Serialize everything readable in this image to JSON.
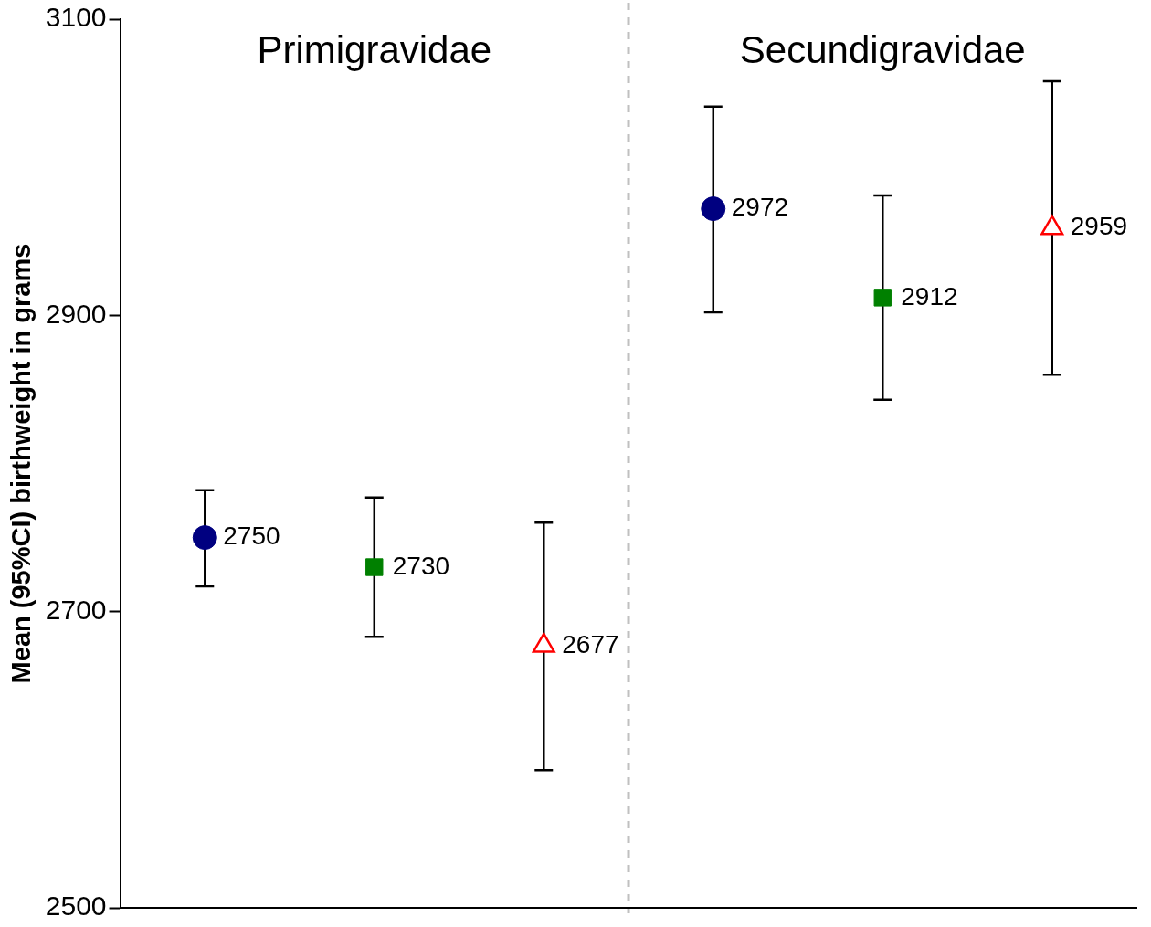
{
  "chart_data": {
    "type": "scatter",
    "ylabel": "Mean (95%CI) birthweight in grams",
    "categories": [
      null,
      null,
      null,
      null,
      null,
      null
    ],
    "series": [
      {
        "color": "#000080",
        "marker": "circle",
        "values": [
          2750,
          null,
          null,
          2972,
          null,
          null
        ],
        "errors": [
          [
            2717,
            2782
          ],
          null,
          null,
          [
            2902,
            3041
          ],
          null,
          null
        ]
      },
      {
        "color": "#008000",
        "marker": "square",
        "values": [
          null,
          2730,
          null,
          null,
          2912,
          null
        ],
        "errors": [
          null,
          [
            2683,
            2777
          ],
          null,
          null,
          [
            2843,
            2981
          ],
          null
        ]
      },
      {
        "color": "#ff0000",
        "marker": "triangle",
        "values": [
          null,
          null,
          2677,
          null,
          null,
          2959
        ],
        "errors": [
          null,
          null,
          [
            2593,
            2760
          ],
          null,
          null,
          [
            2860,
            3058
          ]
        ]
      }
    ],
    "ylim": [
      2500,
      3100
    ],
    "yticks": [
      2500,
      2700,
      2900,
      3100
    ],
    "grid": false,
    "legend": false,
    "tick_labels": "y",
    "data_labels": true,
    "annotations": [
      "Primigravidae",
      "Secundigravidae"
    ]
  }
}
